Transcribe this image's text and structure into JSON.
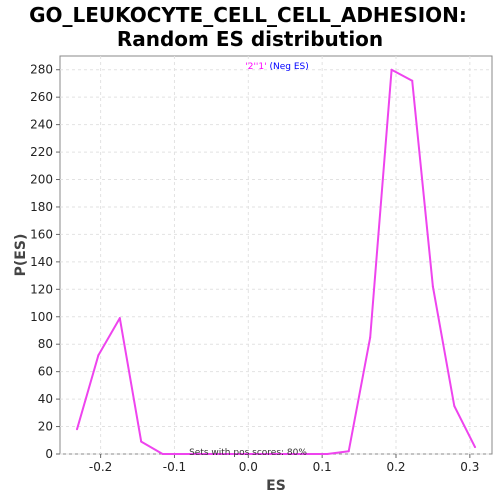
{
  "chart_data": {
    "type": "line",
    "title_line1": "GO_LEUKOCYTE_CELL_CELL_ADHESION:",
    "title_line2": "Random ES distribution",
    "xlabel": "ES",
    "ylabel": "P(ES)",
    "xlim": [
      -0.255,
      0.33
    ],
    "ylim": [
      0,
      290
    ],
    "x_ticks": [
      -0.2,
      -0.1,
      0.0,
      0.1,
      0.2,
      0.3
    ],
    "x_tick_labels": [
      "-0.2",
      "-0.1",
      "0.0",
      "0.1",
      "0.2",
      "0.3"
    ],
    "y_ticks": [
      0,
      20,
      40,
      60,
      80,
      100,
      120,
      140,
      160,
      180,
      200,
      220,
      240,
      260,
      280
    ],
    "grid": true,
    "legend": {
      "position": "top-center",
      "label_part1": "'2''1'",
      "label_part2": " (Neg ES)",
      "color_part1": "#ff00ff",
      "color_part2": "#0000ff"
    },
    "annotation": "Sets with pos scores: 80%",
    "series": [
      {
        "color": "#ee44ee",
        "x": [
          -0.232,
          -0.203,
          -0.174,
          -0.145,
          -0.116,
          -0.087,
          -0.058,
          -0.029,
          0.0,
          0.029,
          0.058,
          0.087,
          0.107,
          0.136,
          0.165,
          0.194,
          0.222,
          0.25,
          0.279,
          0.307
        ],
        "y": [
          18,
          72,
          99,
          9,
          0,
          0,
          0,
          0,
          0,
          0,
          0,
          0,
          0,
          2,
          85,
          280,
          272,
          122,
          35,
          5
        ]
      }
    ]
  }
}
